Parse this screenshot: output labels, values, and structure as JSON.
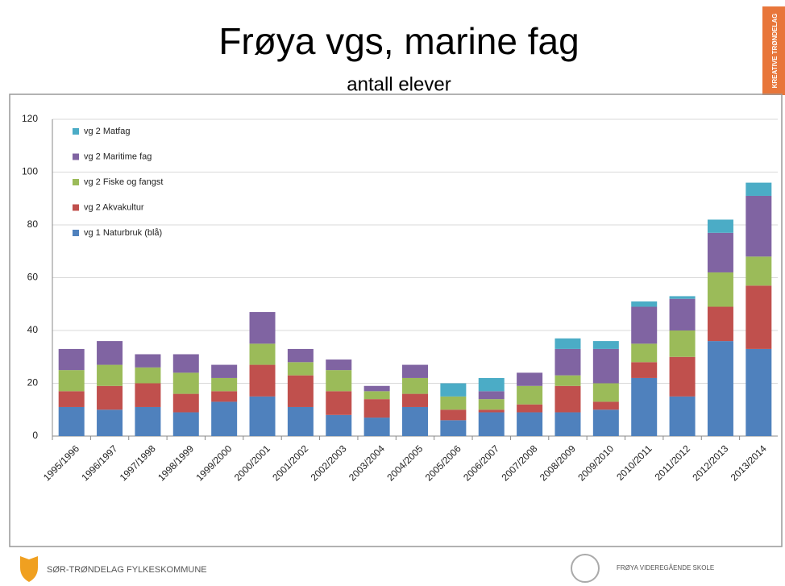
{
  "header": {
    "title": "Frøya vgs, marine fag",
    "subtitle": "antall elever",
    "side_tab": "KREATIVE TRØNDELAG"
  },
  "footer": {
    "left": "SØR-TRØNDELAG FYLKESKOMMUNE",
    "right": "FRØYA VIDEREGÅENDE SKOLE"
  },
  "chart_data": {
    "type": "stacked_bar",
    "categories": [
      "1995/1996",
      "1996/1997",
      "1997/1998",
      "1998/1999",
      "1999/2000",
      "2000/2001",
      "2001/2002",
      "2002/2003",
      "2003/2004",
      "2004/2005",
      "2005/2006",
      "2006/2007",
      "2007/2008",
      "2008/2009",
      "2009/2010",
      "2010/2011",
      "2011/2012",
      "2012/2013",
      "2013/2014"
    ],
    "series": [
      {
        "name": "vg 1 Naturbruk (blå)",
        "color": "#4f81bd",
        "values": [
          11,
          10,
          11,
          9,
          13,
          15,
          11,
          8,
          7,
          11,
          6,
          9,
          9,
          9,
          10,
          22,
          15,
          36,
          33
        ]
      },
      {
        "name": "vg 2 Akvakultur",
        "color": "#c0504d",
        "values": [
          6,
          9,
          9,
          7,
          4,
          12,
          12,
          9,
          7,
          5,
          4,
          1,
          3,
          10,
          3,
          6,
          15,
          13,
          24
        ]
      },
      {
        "name": "vg 2 Fiske og fangst",
        "color": "#9bbb59",
        "values": [
          8,
          8,
          6,
          8,
          5,
          8,
          5,
          8,
          3,
          6,
          5,
          4,
          7,
          4,
          7,
          7,
          10,
          13,
          11
        ]
      },
      {
        "name": "vg 2 Maritime fag",
        "color": "#8064a2",
        "values": [
          8,
          9,
          5,
          7,
          5,
          12,
          5,
          4,
          2,
          5,
          0,
          3,
          5,
          10,
          13,
          14,
          12,
          15,
          23
        ]
      },
      {
        "name": "vg 2 Matfag",
        "color": "#4bacc6",
        "values": [
          0,
          0,
          0,
          0,
          0,
          0,
          0,
          0,
          0,
          0,
          5,
          5,
          0,
          4,
          3,
          2,
          1,
          5,
          5
        ]
      }
    ],
    "ylim": [
      0,
      120
    ],
    "yticks": [
      0,
      20,
      40,
      60,
      80,
      100,
      120
    ],
    "grid": true,
    "legend": "top-left"
  }
}
